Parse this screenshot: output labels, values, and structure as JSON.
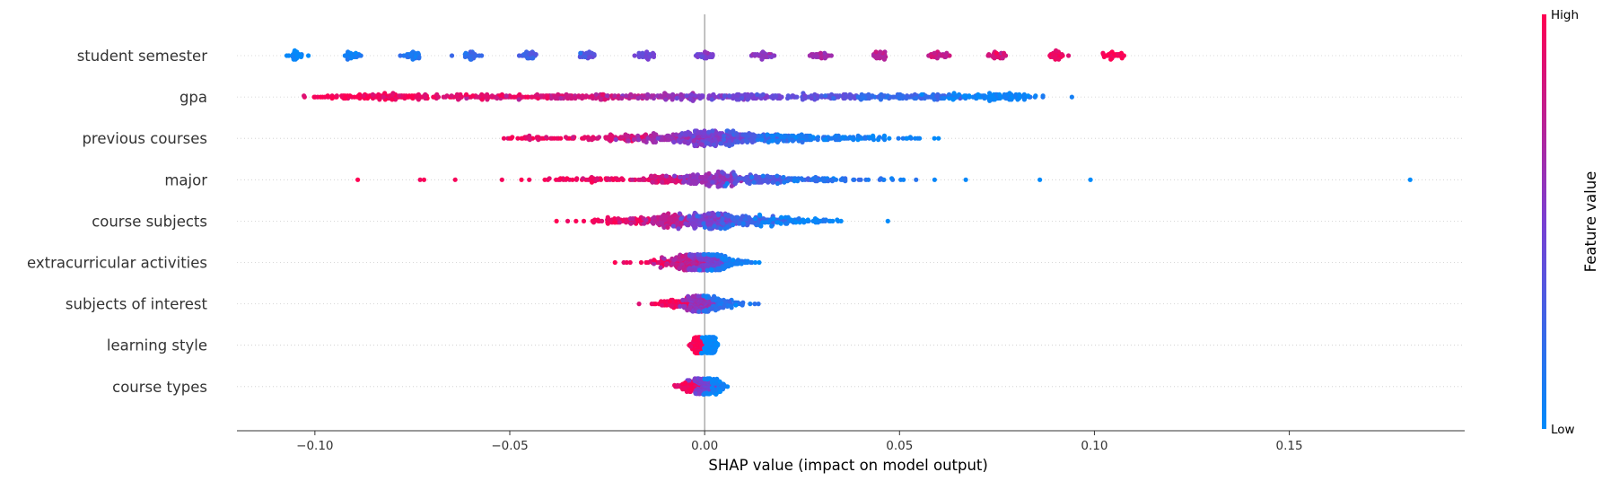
{
  "chart_data": {
    "type": "scatter",
    "subtype": "shap-beeswarm",
    "title": "",
    "xlabel": "SHAP value (impact on model output)",
    "xlim": [
      -0.12,
      0.195
    ],
    "xticks": [
      -0.1,
      -0.05,
      0.0,
      0.05,
      0.1,
      0.15
    ],
    "xtick_labels": [
      "−0.10",
      "−0.05",
      "0.00",
      "0.05",
      "0.10",
      "0.15"
    ],
    "zero_line": true,
    "grid": "dotted horizontal row guides",
    "colorbar": {
      "title": "Feature value",
      "high_label": "High",
      "low_label": "Low",
      "high_color": "#ff0052",
      "low_color": "#008bfb",
      "placement": "right"
    },
    "features": [
      {
        "name": "student semester",
        "clusters": [
          {
            "x": -0.105,
            "v": 0.0,
            "spread": 0.0012,
            "n": 30
          },
          {
            "x": -0.09,
            "v": 0.071,
            "spread": 0.0012,
            "n": 30
          },
          {
            "x": -0.075,
            "v": 0.143,
            "spread": 0.0012,
            "n": 30
          },
          {
            "x": -0.06,
            "v": 0.214,
            "spread": 0.0012,
            "n": 30
          },
          {
            "x": -0.045,
            "v": 0.286,
            "spread": 0.0012,
            "n": 30
          },
          {
            "x": -0.03,
            "v": 0.357,
            "spread": 0.0012,
            "n": 30
          },
          {
            "x": -0.015,
            "v": 0.429,
            "spread": 0.0012,
            "n": 30
          },
          {
            "x": 0.0,
            "v": 0.5,
            "spread": 0.0012,
            "n": 30
          },
          {
            "x": 0.015,
            "v": 0.571,
            "spread": 0.0012,
            "n": 30
          },
          {
            "x": 0.03,
            "v": 0.643,
            "spread": 0.0012,
            "n": 30
          },
          {
            "x": 0.045,
            "v": 0.714,
            "spread": 0.0012,
            "n": 30
          },
          {
            "x": 0.06,
            "v": 0.786,
            "spread": 0.0012,
            "n": 30
          },
          {
            "x": 0.075,
            "v": 0.857,
            "spread": 0.0012,
            "n": 30
          },
          {
            "x": 0.09,
            "v": 0.929,
            "spread": 0.0012,
            "n": 30
          },
          {
            "x": 0.105,
            "v": 1.0,
            "spread": 0.0012,
            "n": 30
          }
        ]
      },
      {
        "name": "gpa",
        "clusters": [
          {
            "x": -0.082,
            "v": 0.97,
            "spread": 0.01,
            "n": 120
          },
          {
            "x": -0.055,
            "v": 0.9,
            "spread": 0.012,
            "n": 110
          },
          {
            "x": -0.03,
            "v": 0.82,
            "spread": 0.01,
            "n": 100
          },
          {
            "x": -0.01,
            "v": 0.65,
            "spread": 0.007,
            "n": 80
          },
          {
            "x": 0.01,
            "v": 0.5,
            "spread": 0.007,
            "n": 90
          },
          {
            "x": 0.03,
            "v": 0.38,
            "spread": 0.009,
            "n": 100
          },
          {
            "x": 0.055,
            "v": 0.22,
            "spread": 0.009,
            "n": 110
          },
          {
            "x": 0.075,
            "v": 0.06,
            "spread": 0.006,
            "n": 110
          }
        ],
        "points": [
          {
            "x": -0.091,
            "v": 1.0
          },
          {
            "x": -0.003,
            "v": 0.55
          },
          {
            "x": 0.083,
            "v": 0.0
          }
        ]
      },
      {
        "name": "previous courses",
        "clusters": [
          {
            "x": -0.04,
            "v": 0.95,
            "spread": 0.006,
            "n": 40
          },
          {
            "x": -0.02,
            "v": 0.85,
            "spread": 0.007,
            "n": 90
          },
          {
            "x": -0.005,
            "v": 0.65,
            "spread": 0.006,
            "n": 140
          },
          {
            "x": 0.003,
            "v": 0.5,
            "spread": 0.005,
            "n": 200
          },
          {
            "x": 0.015,
            "v": 0.3,
            "spread": 0.007,
            "n": 130
          },
          {
            "x": 0.03,
            "v": 0.1,
            "spread": 0.008,
            "n": 90
          },
          {
            "x": 0.045,
            "v": 0.05,
            "spread": 0.006,
            "n": 25
          }
        ],
        "points": [
          {
            "x": -0.05,
            "v": 1.0
          },
          {
            "x": -0.047,
            "v": 0.98
          },
          {
            "x": 0.054,
            "v": 0.05
          },
          {
            "x": 0.06,
            "v": 0.0
          }
        ]
      },
      {
        "name": "major",
        "clusters": [
          {
            "x": -0.025,
            "v": 0.95,
            "spread": 0.008,
            "n": 60
          },
          {
            "x": -0.01,
            "v": 0.85,
            "spread": 0.005,
            "n": 90
          },
          {
            "x": 0.003,
            "v": 0.6,
            "spread": 0.004,
            "n": 180
          },
          {
            "x": 0.015,
            "v": 0.35,
            "spread": 0.006,
            "n": 110
          },
          {
            "x": 0.03,
            "v": 0.15,
            "spread": 0.008,
            "n": 60
          }
        ],
        "points": [
          {
            "x": -0.089,
            "v": 1.0
          },
          {
            "x": -0.073,
            "v": 0.95
          },
          {
            "x": -0.072,
            "v": 0.98
          },
          {
            "x": -0.064,
            "v": 0.97
          },
          {
            "x": -0.052,
            "v": 0.96
          },
          {
            "x": -0.047,
            "v": 1.0
          },
          {
            "x": -0.045,
            "v": 0.95
          },
          {
            "x": -0.041,
            "v": 0.98
          },
          {
            "x": -0.037,
            "v": 0.99
          },
          {
            "x": 0.042,
            "v": 0.1
          },
          {
            "x": 0.046,
            "v": 0.08
          },
          {
            "x": 0.048,
            "v": 0.05
          },
          {
            "x": 0.051,
            "v": 0.05
          },
          {
            "x": 0.059,
            "v": 0.03
          },
          {
            "x": 0.067,
            "v": 0.02
          },
          {
            "x": 0.086,
            "v": 0.01
          },
          {
            "x": 0.099,
            "v": 0.0
          },
          {
            "x": 0.181,
            "v": 0.0
          }
        ]
      },
      {
        "name": "course subjects",
        "clusters": [
          {
            "x": -0.02,
            "v": 0.95,
            "spread": 0.006,
            "n": 80
          },
          {
            "x": -0.008,
            "v": 0.75,
            "spread": 0.005,
            "n": 150
          },
          {
            "x": 0.002,
            "v": 0.5,
            "spread": 0.004,
            "n": 200
          },
          {
            "x": 0.012,
            "v": 0.25,
            "spread": 0.006,
            "n": 130
          },
          {
            "x": 0.025,
            "v": 0.05,
            "spread": 0.006,
            "n": 60
          }
        ],
        "points": [
          {
            "x": -0.038,
            "v": 1.0
          },
          {
            "x": -0.033,
            "v": 0.98
          },
          {
            "x": -0.031,
            "v": 0.97
          },
          {
            "x": 0.034,
            "v": 0.02
          },
          {
            "x": 0.035,
            "v": 0.0
          },
          {
            "x": 0.047,
            "v": 0.0
          }
        ]
      },
      {
        "name": "extracurricular activities",
        "clusters": [
          {
            "x": -0.01,
            "v": 0.95,
            "spread": 0.004,
            "n": 60
          },
          {
            "x": -0.003,
            "v": 0.75,
            "spread": 0.003,
            "n": 180
          },
          {
            "x": 0.001,
            "v": 0.5,
            "spread": 0.002,
            "n": 200
          },
          {
            "x": 0.006,
            "v": 0.1,
            "spread": 0.003,
            "n": 80
          }
        ],
        "points": [
          {
            "x": -0.023,
            "v": 1.0
          },
          {
            "x": -0.015,
            "v": 0.97
          },
          {
            "x": -0.013,
            "v": 0.98
          },
          {
            "x": 0.013,
            "v": 0.02
          },
          {
            "x": 0.014,
            "v": 0.0
          }
        ]
      },
      {
        "name": "subjects of interest",
        "clusters": [
          {
            "x": -0.006,
            "v": 0.95,
            "spread": 0.003,
            "n": 100
          },
          {
            "x": -0.001,
            "v": 0.6,
            "spread": 0.002,
            "n": 180
          },
          {
            "x": 0.004,
            "v": 0.15,
            "spread": 0.003,
            "n": 90
          }
        ],
        "points": [
          {
            "x": -0.009,
            "v": 1.0
          },
          {
            "x": 0.008,
            "v": 0.0
          }
        ]
      },
      {
        "name": "learning style",
        "clusters": [
          {
            "x": -0.0015,
            "v": 1.0,
            "spread": 0.0008,
            "n": 180
          },
          {
            "x": 0.0015,
            "v": 0.0,
            "spread": 0.0008,
            "n": 180
          }
        ]
      },
      {
        "name": "course types",
        "clusters": [
          {
            "x": -0.003,
            "v": 0.95,
            "spread": 0.002,
            "n": 80
          },
          {
            "x": 0.0,
            "v": 0.5,
            "spread": 0.0015,
            "n": 140
          },
          {
            "x": 0.003,
            "v": 0.05,
            "spread": 0.0015,
            "n": 60
          }
        ],
        "points": [
          {
            "x": -0.005,
            "v": 1.0
          },
          {
            "x": 0.004,
            "v": 0.0
          }
        ]
      }
    ]
  }
}
